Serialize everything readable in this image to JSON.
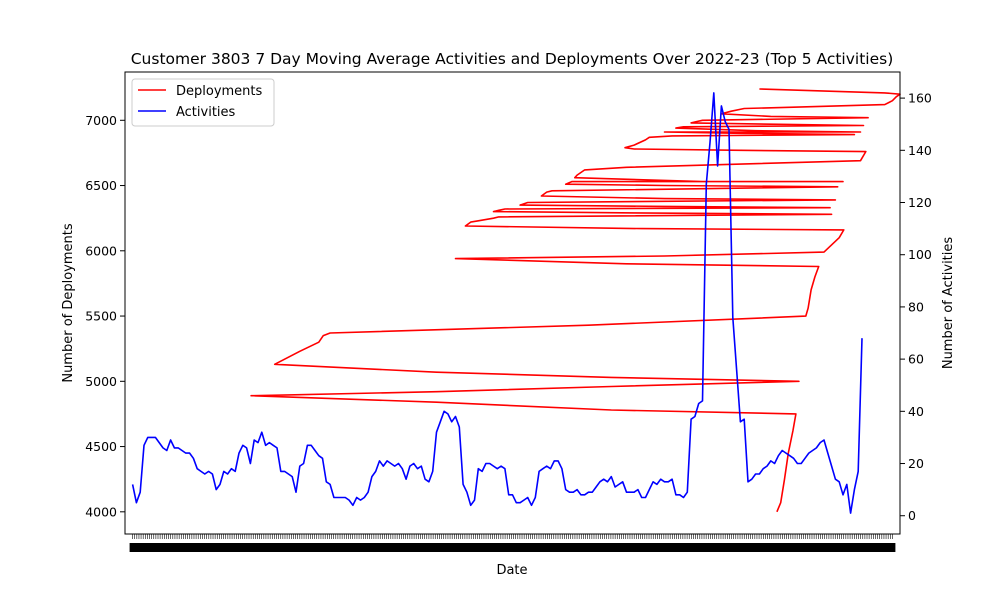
{
  "chart_data": {
    "type": "line",
    "title": "Customer 3803 7 Day Moving Average Activities and Deployments Over 2022-23 (Top 5 Activities)",
    "xlabel": "Date",
    "ylabel_left": "Number of Deployments",
    "ylabel_right": "Number of Activities",
    "y_left_range": [
      3830,
      7370
    ],
    "y_right_range": [
      -7,
      170
    ],
    "y_left_ticks": [
      4000,
      4500,
      5000,
      5500,
      6000,
      6500,
      7000
    ],
    "y_right_ticks": [
      0,
      20,
      40,
      60,
      80,
      100,
      120,
      140,
      160
    ],
    "x_domain": [
      -1,
      101
    ],
    "x_tick_count": 360,
    "legend": {
      "position": "top-left",
      "entries": [
        "Deployments",
        "Activities"
      ]
    },
    "colors": {
      "deployments": "#ff0000",
      "activities": "#0000ff"
    },
    "series": [
      {
        "name": "Deployments",
        "axis": "left",
        "color": "#ff0000",
        "points": [
          [
            84.8,
            4000
          ],
          [
            85.3,
            4070
          ],
          [
            85.8,
            4250
          ],
          [
            86.3,
            4450
          ],
          [
            86.9,
            4620
          ],
          [
            87.3,
            4750
          ],
          [
            63,
            4780
          ],
          [
            40,
            4840
          ],
          [
            15.6,
            4890
          ],
          [
            40,
            4920
          ],
          [
            63,
            4960
          ],
          [
            87.7,
            5000
          ],
          [
            63,
            5030
          ],
          [
            40,
            5070
          ],
          [
            18.7,
            5130
          ],
          [
            22,
            5230
          ],
          [
            24.5,
            5300
          ],
          [
            25.1,
            5350
          ],
          [
            26,
            5370
          ],
          [
            60,
            5430
          ],
          [
            88.6,
            5500
          ],
          [
            88.9,
            5560
          ],
          [
            89.3,
            5700
          ],
          [
            89.8,
            5800
          ],
          [
            90.3,
            5880
          ],
          [
            65,
            5900
          ],
          [
            42.5,
            5940
          ],
          [
            70,
            5960
          ],
          [
            91,
            5990
          ],
          [
            93,
            6100
          ],
          [
            93.6,
            6160
          ],
          [
            67,
            6170
          ],
          [
            43.8,
            6190
          ],
          [
            44.5,
            6220
          ],
          [
            45.5,
            6230
          ],
          [
            47.5,
            6250
          ],
          [
            48.2,
            6260
          ],
          [
            92,
            6280
          ],
          [
            66,
            6290
          ],
          [
            47.5,
            6300
          ],
          [
            48.2,
            6310
          ],
          [
            49,
            6320
          ],
          [
            91.8,
            6330
          ],
          [
            70,
            6340
          ],
          [
            51,
            6350
          ],
          [
            52,
            6370
          ],
          [
            92.5,
            6390
          ],
          [
            70,
            6400
          ],
          [
            53.8,
            6420
          ],
          [
            54.5,
            6450
          ],
          [
            55.2,
            6460
          ],
          [
            92.8,
            6490
          ],
          [
            70,
            6500
          ],
          [
            57,
            6510
          ],
          [
            57.8,
            6530
          ],
          [
            93.5,
            6530
          ],
          [
            75,
            6530
          ],
          [
            58.2,
            6560
          ],
          [
            58.5,
            6580
          ],
          [
            59.5,
            6620
          ],
          [
            65,
            6640
          ],
          [
            95.8,
            6690
          ],
          [
            96.5,
            6760
          ],
          [
            80,
            6770
          ],
          [
            66,
            6780
          ],
          [
            64.8,
            6790
          ],
          [
            66,
            6810
          ],
          [
            67.5,
            6850
          ],
          [
            68,
            6870
          ],
          [
            71,
            6880
          ],
          [
            95,
            6890
          ],
          [
            80,
            6900
          ],
          [
            70,
            6910
          ],
          [
            95.8,
            6910
          ],
          [
            82,
            6920
          ],
          [
            71.5,
            6940
          ],
          [
            72.5,
            6950
          ],
          [
            96.2,
            6960
          ],
          [
            84,
            6970
          ],
          [
            73.5,
            6980
          ],
          [
            74.2,
            6990
          ],
          [
            75,
            7000
          ],
          [
            96.8,
            7020
          ],
          [
            84,
            7030
          ],
          [
            77.5,
            7050
          ],
          [
            78.8,
            7070
          ],
          [
            80.5,
            7090
          ],
          [
            87,
            7100
          ],
          [
            99,
            7120
          ],
          [
            100,
            7150
          ],
          [
            100.5,
            7180
          ],
          [
            101,
            7200
          ],
          [
            99,
            7210
          ],
          [
            82.5,
            7240
          ]
        ]
      },
      {
        "name": "Activities",
        "axis": "right",
        "color": "#0000ff",
        "points": [
          [
            0,
            12
          ],
          [
            0.5,
            5
          ],
          [
            1,
            9
          ],
          [
            1.5,
            27
          ],
          [
            2,
            30
          ],
          [
            2.5,
            30
          ],
          [
            3,
            30
          ],
          [
            3.5,
            28
          ],
          [
            4,
            26
          ],
          [
            4.5,
            25
          ],
          [
            5,
            29
          ],
          [
            5.5,
            26
          ],
          [
            6,
            26
          ],
          [
            6.5,
            25
          ],
          [
            7,
            24
          ],
          [
            7.5,
            24
          ],
          [
            8,
            22
          ],
          [
            8.5,
            18
          ],
          [
            9,
            17
          ],
          [
            9.5,
            16
          ],
          [
            10,
            17
          ],
          [
            10.5,
            16
          ],
          [
            11,
            10
          ],
          [
            11.5,
            12
          ],
          [
            12,
            17
          ],
          [
            12.5,
            16
          ],
          [
            13,
            18
          ],
          [
            13.5,
            17
          ],
          [
            14,
            24
          ],
          [
            14.5,
            27
          ],
          [
            15,
            26
          ],
          [
            15.5,
            20
          ],
          [
            16,
            29
          ],
          [
            16.5,
            28
          ],
          [
            17,
            32
          ],
          [
            17.5,
            27
          ],
          [
            18,
            28
          ],
          [
            18.5,
            27
          ],
          [
            19,
            26
          ],
          [
            19.5,
            17
          ],
          [
            20,
            17
          ],
          [
            20.5,
            16
          ],
          [
            21,
            15
          ],
          [
            21.5,
            9
          ],
          [
            22,
            19
          ],
          [
            22.5,
            20
          ],
          [
            23,
            27
          ],
          [
            23.5,
            27
          ],
          [
            24,
            25
          ],
          [
            24.5,
            23
          ],
          [
            25,
            22
          ],
          [
            25.5,
            13
          ],
          [
            26,
            12
          ],
          [
            26.5,
            7
          ],
          [
            27,
            7
          ],
          [
            27.5,
            7
          ],
          [
            28,
            7
          ],
          [
            28.5,
            6
          ],
          [
            29,
            4
          ],
          [
            29.5,
            7
          ],
          [
            30,
            6
          ],
          [
            30.5,
            7
          ],
          [
            31,
            9
          ],
          [
            31.5,
            15
          ],
          [
            32,
            17
          ],
          [
            32.5,
            21
          ],
          [
            33,
            19
          ],
          [
            33.5,
            21
          ],
          [
            34,
            20
          ],
          [
            34.5,
            19
          ],
          [
            35,
            20
          ],
          [
            35.5,
            18
          ],
          [
            36,
            14
          ],
          [
            36.5,
            19
          ],
          [
            37,
            20
          ],
          [
            37.5,
            18
          ],
          [
            38,
            19
          ],
          [
            38.5,
            14
          ],
          [
            39,
            13
          ],
          [
            39.5,
            17
          ],
          [
            40,
            32
          ],
          [
            40.5,
            36
          ],
          [
            41,
            40
          ],
          [
            41.5,
            39
          ],
          [
            42,
            36
          ],
          [
            42.5,
            38
          ],
          [
            43,
            34
          ],
          [
            43.5,
            12
          ],
          [
            44,
            9
          ],
          [
            44.5,
            4
          ],
          [
            45,
            6
          ],
          [
            45.5,
            18
          ],
          [
            46,
            17
          ],
          [
            46.5,
            20
          ],
          [
            47,
            20
          ],
          [
            47.5,
            19
          ],
          [
            48,
            18
          ],
          [
            48.5,
            19
          ],
          [
            49,
            18
          ],
          [
            49.5,
            8
          ],
          [
            50,
            8
          ],
          [
            50.5,
            5
          ],
          [
            51,
            5
          ],
          [
            51.5,
            6
          ],
          [
            52,
            7
          ],
          [
            52.5,
            4
          ],
          [
            53,
            7
          ],
          [
            53.5,
            17
          ],
          [
            54,
            18
          ],
          [
            54.5,
            19
          ],
          [
            55,
            18
          ],
          [
            55.5,
            21
          ],
          [
            56,
            21
          ],
          [
            56.5,
            18
          ],
          [
            57,
            10
          ],
          [
            57.5,
            9
          ],
          [
            58,
            9
          ],
          [
            58.5,
            10
          ],
          [
            59,
            8
          ],
          [
            59.5,
            8
          ],
          [
            60,
            9
          ],
          [
            60.5,
            9
          ],
          [
            61,
            11
          ],
          [
            61.5,
            13
          ],
          [
            62,
            14
          ],
          [
            62.5,
            13
          ],
          [
            63,
            15
          ],
          [
            63.5,
            11
          ],
          [
            64,
            12
          ],
          [
            64.5,
            13
          ],
          [
            65,
            9
          ],
          [
            65.5,
            9
          ],
          [
            66,
            9
          ],
          [
            66.5,
            10
          ],
          [
            67,
            7
          ],
          [
            67.5,
            7
          ],
          [
            68,
            10
          ],
          [
            68.5,
            13
          ],
          [
            69,
            12
          ],
          [
            69.5,
            14
          ],
          [
            70,
            13
          ],
          [
            70.5,
            13
          ],
          [
            71,
            14
          ],
          [
            71.5,
            8
          ],
          [
            72,
            8
          ],
          [
            72.5,
            7
          ],
          [
            73,
            9
          ],
          [
            73.5,
            37
          ],
          [
            74,
            38
          ],
          [
            74.5,
            43
          ],
          [
            75,
            44
          ],
          [
            75.5,
            127
          ],
          [
            76,
            143
          ],
          [
            76.5,
            162
          ],
          [
            77,
            134
          ],
          [
            77.5,
            157
          ],
          [
            78,
            151
          ],
          [
            78.5,
            148
          ],
          [
            79,
            76
          ],
          [
            79.5,
            56
          ],
          [
            80,
            36
          ],
          [
            80.5,
            37
          ],
          [
            81,
            13
          ],
          [
            81.5,
            14
          ],
          [
            82,
            16
          ],
          [
            82.5,
            16
          ],
          [
            83,
            18
          ],
          [
            83.5,
            19
          ],
          [
            84,
            21
          ],
          [
            84.5,
            20
          ],
          [
            85,
            23
          ],
          [
            85.5,
            25
          ],
          [
            86,
            24
          ],
          [
            86.5,
            23
          ],
          [
            87,
            22
          ],
          [
            87.5,
            20
          ],
          [
            88,
            20
          ],
          [
            88.5,
            22
          ],
          [
            89,
            24
          ],
          [
            89.5,
            25
          ],
          [
            90,
            26
          ],
          [
            90.5,
            28
          ],
          [
            91,
            29
          ],
          [
            91.5,
            24
          ],
          [
            92,
            19
          ],
          [
            92.5,
            14
          ],
          [
            93,
            13
          ],
          [
            93.5,
            8
          ],
          [
            94,
            12
          ],
          [
            94.5,
            1
          ],
          [
            95,
            10
          ],
          [
            95.5,
            17
          ],
          [
            96,
            68
          ]
        ]
      }
    ]
  }
}
